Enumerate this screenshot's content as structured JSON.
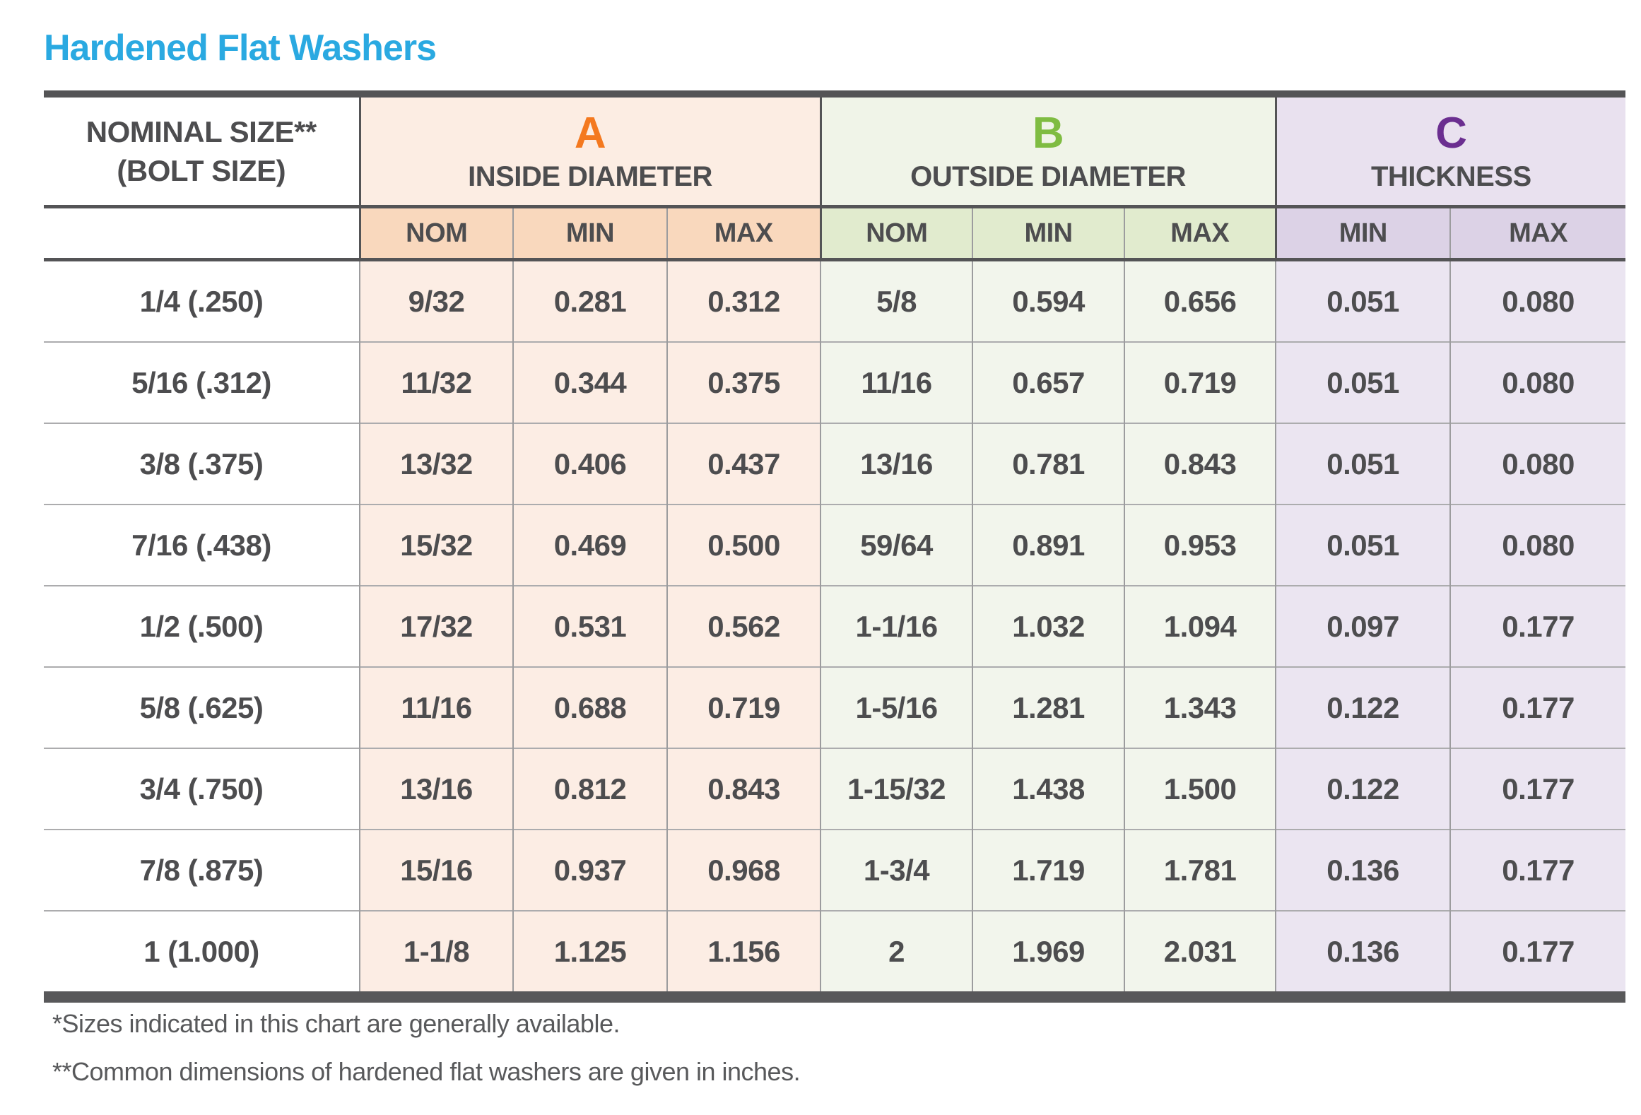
{
  "title": "Hardened Flat Washers",
  "colors": {
    "title_blue": "#2AA9E1",
    "letter_a_orange": "#F4791F",
    "letter_b_green": "#7FBC42",
    "letter_c_purple": "#6B2E90",
    "band_a_peach": "#FCEDE4",
    "band_a_sub_peach": "#F9D8BD",
    "band_b_green": "#F2F5EC",
    "band_b_sub_green": "#E1EBCE",
    "band_c_purple": "#EBE5F1",
    "band_c_sub_purple": "#DCD2E6",
    "text_dark": "#4D4D4F",
    "rule_dark": "#545456"
  },
  "chart_data": {
    "type": "table",
    "title": "Hardened Flat Washers",
    "corner_header": {
      "line1": "NOMINAL SIZE**",
      "line2": "(BOLT SIZE)"
    },
    "column_groups": [
      {
        "letter": "A",
        "label": "INSIDE DIAMETER",
        "subcols": [
          "NOM",
          "MIN",
          "MAX"
        ]
      },
      {
        "letter": "B",
        "label": "OUTSIDE DIAMETER",
        "subcols": [
          "NOM",
          "MIN",
          "MAX"
        ]
      },
      {
        "letter": "C",
        "label": "THICKNESS",
        "subcols": [
          "MIN",
          "MAX"
        ]
      }
    ],
    "sub_headers": [
      "NOM",
      "MIN",
      "MAX",
      "NOM",
      "MIN",
      "MAX",
      "MIN",
      "MAX"
    ],
    "rows": [
      [
        "1/4 (.250)",
        "9/32",
        "0.281",
        "0.312",
        "5/8",
        "0.594",
        "0.656",
        "0.051",
        "0.080"
      ],
      [
        "5/16 (.312)",
        "11/32",
        "0.344",
        "0.375",
        "11/16",
        "0.657",
        "0.719",
        "0.051",
        "0.080"
      ],
      [
        "3/8 (.375)",
        "13/32",
        "0.406",
        "0.437",
        "13/16",
        "0.781",
        "0.843",
        "0.051",
        "0.080"
      ],
      [
        "7/16 (.438)",
        "15/32",
        "0.469",
        "0.500",
        "59/64",
        "0.891",
        "0.953",
        "0.051",
        "0.080"
      ],
      [
        "1/2 (.500)",
        "17/32",
        "0.531",
        "0.562",
        "1-1/16",
        "1.032",
        "1.094",
        "0.097",
        "0.177"
      ],
      [
        "5/8 (.625)",
        "11/16",
        "0.688",
        "0.719",
        "1-5/16",
        "1.281",
        "1.343",
        "0.122",
        "0.177"
      ],
      [
        "3/4 (.750)",
        "13/16",
        "0.812",
        "0.843",
        "1-15/32",
        "1.438",
        "1.500",
        "0.122",
        "0.177"
      ],
      [
        "7/8 (.875)",
        "15/16",
        "0.937",
        "0.968",
        "1-3/4",
        "1.719",
        "1.781",
        "0.136",
        "0.177"
      ],
      [
        "1 (1.000)",
        "1-1/8",
        "1.125",
        "1.156",
        "2",
        "1.969",
        "2.031",
        "0.136",
        "0.177"
      ]
    ],
    "footnotes": [
      "*Sizes indicated in this chart are generally available.",
      "**Common dimensions of hardened flat washers are given in inches."
    ]
  }
}
